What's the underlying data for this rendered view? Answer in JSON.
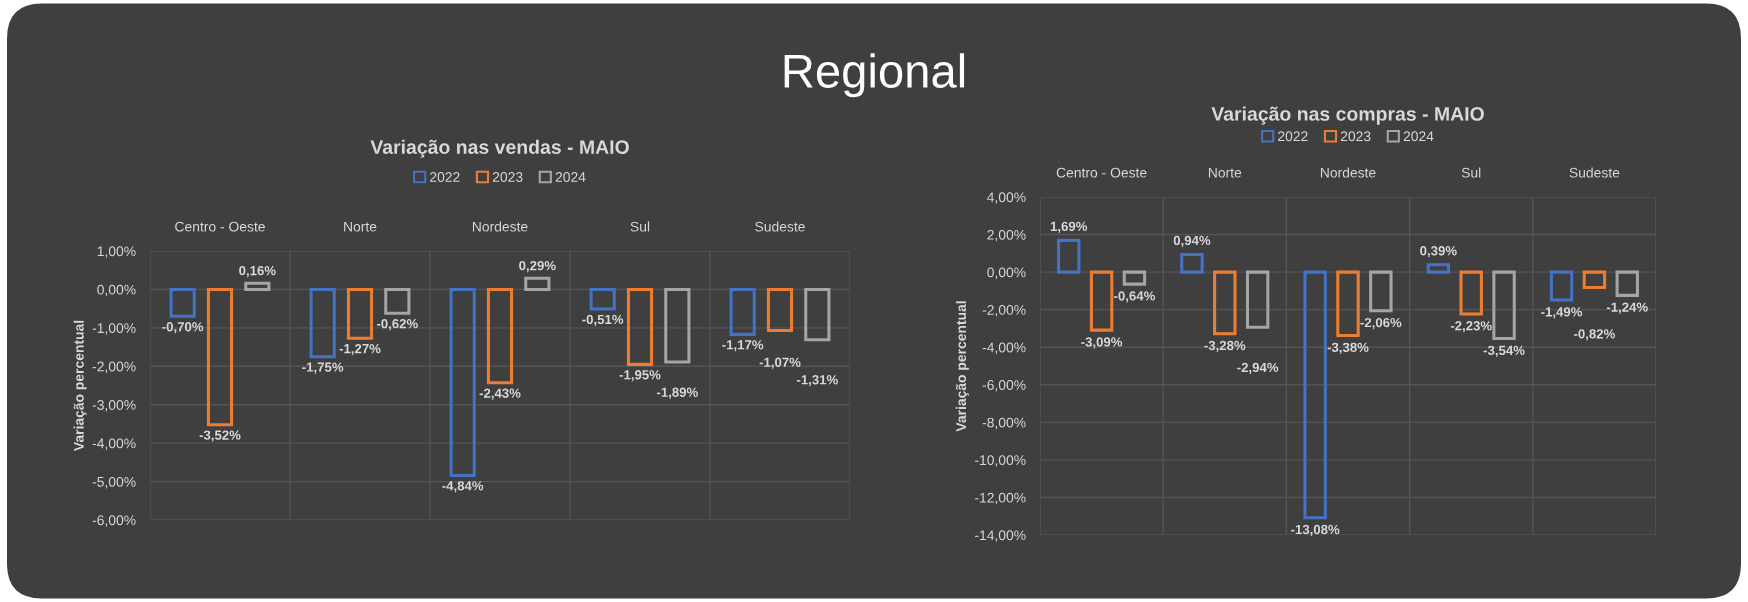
{
  "chart_data": [
    {
      "type": "bar",
      "title": "Variação nas vendas - MAIO",
      "ylabel": "Variação percentual",
      "annotations": [
        "Regional"
      ],
      "categories": [
        "Centro - Oeste",
        "Norte",
        "Nordeste",
        "Sul",
        "Sudeste"
      ],
      "series": [
        {
          "name": "2022",
          "color": "#4472c4",
          "values": [
            -0.7,
            -1.75,
            -4.84,
            -0.51,
            -1.17
          ],
          "value_labels": [
            "-0,70%",
            "-1,75%",
            "-4,84%",
            "-0,51%",
            "-1,17%"
          ]
        },
        {
          "name": "2023",
          "color": "#ed7d31",
          "values": [
            -3.52,
            -1.27,
            -2.43,
            -1.95,
            -1.07
          ],
          "value_labels": [
            "-3,52%",
            "-1,27%",
            "-2,43%",
            "-1,95%",
            "-1,07%"
          ]
        },
        {
          "name": "2024",
          "color": "#a5a5a5",
          "values": [
            0.16,
            -0.62,
            0.29,
            -1.89,
            -1.31
          ],
          "value_labels": [
            "0,16%",
            "-0,62%",
            "0,29%",
            "-1,89%",
            "-1,31%"
          ]
        }
      ],
      "ylim": [
        -6,
        1
      ],
      "yticks": [
        {
          "value": 1,
          "label": "1,00%"
        },
        {
          "value": 0,
          "label": "0,00%"
        },
        {
          "value": -1,
          "label": "-1,00%"
        },
        {
          "value": -2,
          "label": "-2,00%"
        },
        {
          "value": -3,
          "label": "-3,00%"
        },
        {
          "value": -4,
          "label": "-4,00%"
        },
        {
          "value": -5,
          "label": "-5,00%"
        },
        {
          "value": -6,
          "label": "-6,00%"
        }
      ],
      "grid": true,
      "legend": "top"
    },
    {
      "type": "bar",
      "title": "Variação nas compras - MAIO",
      "ylabel": "Variação percentual",
      "categories": [
        "Centro - Oeste",
        "Norte",
        "Nordeste",
        "Sul",
        "Sudeste"
      ],
      "series": [
        {
          "name": "2022",
          "color": "#4472c4",
          "values": [
            1.69,
            0.94,
            -13.08,
            0.39,
            -1.49
          ],
          "value_labels": [
            "1,69%",
            "0,94%",
            "-13,08%",
            "0,39%",
            "-1,49%"
          ]
        },
        {
          "name": "2023",
          "color": "#ed7d31",
          "values": [
            -3.09,
            -3.28,
            -3.38,
            -2.23,
            -0.82
          ],
          "value_labels": [
            "-3,09%",
            "-3,28%",
            "-3,38%",
            "-2,23%",
            "-0,82%"
          ]
        },
        {
          "name": "2024",
          "color": "#a5a5a5",
          "values": [
            -0.64,
            -2.94,
            -2.06,
            -3.54,
            -1.24
          ],
          "value_labels": [
            "-0,64%",
            "-2,94%",
            "-2,06%",
            "-3,54%",
            "-1,24%"
          ]
        }
      ],
      "ylim": [
        -14,
        4
      ],
      "yticks": [
        {
          "value": 4,
          "label": "4,00%"
        },
        {
          "value": 2,
          "label": "2,00%"
        },
        {
          "value": 0,
          "label": "0,00%"
        },
        {
          "value": -2,
          "label": "-2,00%"
        },
        {
          "value": -4,
          "label": "-4,00%"
        },
        {
          "value": -6,
          "label": "-6,00%"
        },
        {
          "value": -8,
          "label": "-8,00%"
        },
        {
          "value": -10,
          "label": "-10,00%"
        },
        {
          "value": -12,
          "label": "-12,00%"
        },
        {
          "value": -14,
          "label": "-14,00%"
        }
      ],
      "grid": true,
      "legend": "top"
    }
  ]
}
